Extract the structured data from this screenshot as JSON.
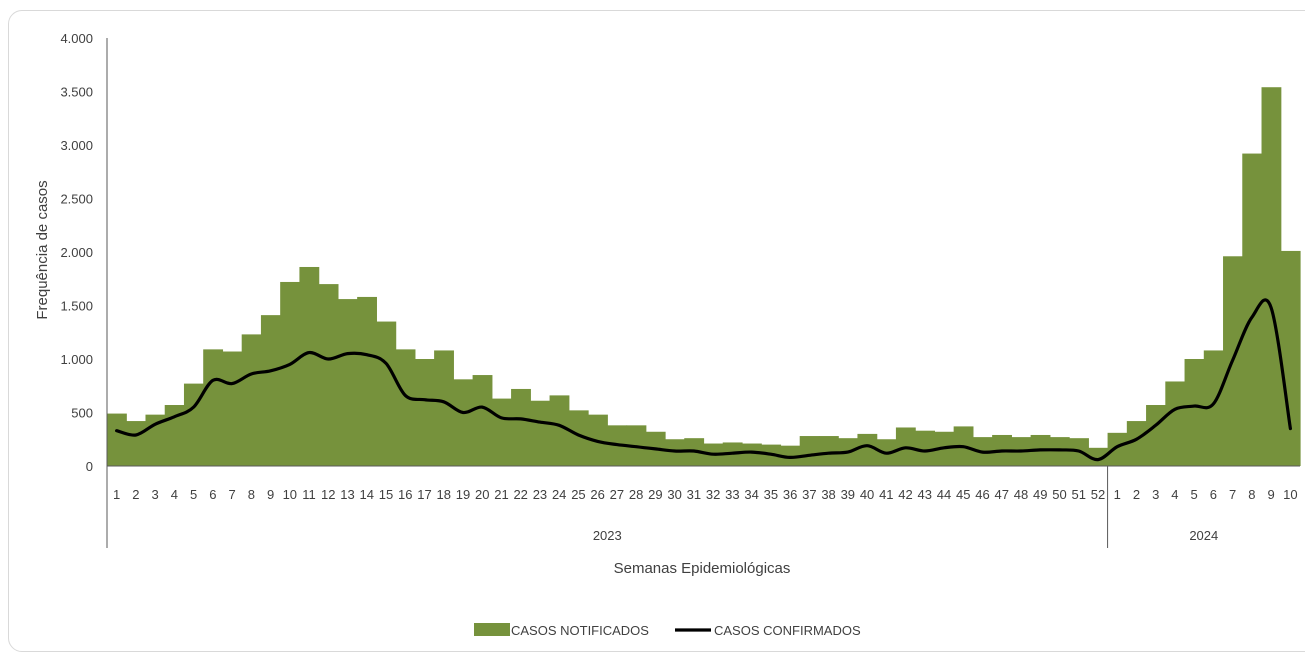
{
  "chart_data": {
    "type": "bar",
    "xlabel": "Semanas Epidemiológicas",
    "ylabel": "Frequência de casos",
    "ylim": [
      0,
      4000
    ],
    "yticks": [
      0,
      500,
      1000,
      1500,
      2000,
      2500,
      3000,
      3500,
      4000
    ],
    "ytick_labels": [
      "0",
      "500",
      "1.000",
      "1.500",
      "2.000",
      "2.500",
      "3.000",
      "3.500",
      "4.000"
    ],
    "groups": [
      {
        "label": "2023",
        "weeks": [
          "1",
          "2",
          "3",
          "4",
          "5",
          "6",
          "7",
          "8",
          "9",
          "10",
          "11",
          "12",
          "13",
          "14",
          "15",
          "16",
          "17",
          "18",
          "19",
          "20",
          "21",
          "22",
          "23",
          "24",
          "25",
          "26",
          "27",
          "28",
          "29",
          "30",
          "31",
          "32",
          "33",
          "34",
          "35",
          "36",
          "37",
          "38",
          "39",
          "40",
          "41",
          "42",
          "43",
          "44",
          "45",
          "46",
          "47",
          "48",
          "49",
          "50",
          "51",
          "52"
        ]
      },
      {
        "label": "2024",
        "weeks": [
          "1",
          "2",
          "3",
          "4",
          "5",
          "6",
          "7",
          "8",
          "9",
          "10"
        ]
      }
    ],
    "series": [
      {
        "name": "CASOS NOTIFICADOS",
        "kind": "bar",
        "color": "#76923c",
        "values": [
          490,
          420,
          480,
          570,
          770,
          1090,
          1070,
          1230,
          1410,
          1720,
          1860,
          1700,
          1560,
          1580,
          1350,
          1090,
          1000,
          1080,
          810,
          850,
          630,
          720,
          610,
          660,
          520,
          480,
          380,
          380,
          320,
          250,
          260,
          210,
          220,
          210,
          200,
          190,
          280,
          280,
          260,
          300,
          250,
          360,
          330,
          320,
          370,
          270,
          290,
          270,
          290,
          270,
          260,
          170,
          310,
          420,
          570,
          790,
          1000,
          1080,
          1960,
          2920,
          3540,
          2010
        ]
      },
      {
        "name": "CASOS CONFIRMADOS",
        "kind": "line",
        "color": "#000000",
        "values": [
          330,
          290,
          390,
          460,
          550,
          800,
          770,
          860,
          890,
          950,
          1060,
          1000,
          1050,
          1040,
          960,
          660,
          620,
          600,
          500,
          550,
          450,
          440,
          410,
          380,
          290,
          230,
          200,
          180,
          160,
          140,
          140,
          110,
          120,
          130,
          110,
          80,
          100,
          120,
          130,
          190,
          120,
          170,
          140,
          170,
          180,
          130,
          140,
          140,
          150,
          150,
          140,
          60,
          180,
          250,
          380,
          530,
          560,
          580,
          990,
          1390,
          1480,
          350
        ]
      }
    ],
    "legend": {
      "placement": "bottom-center"
    },
    "grid": false
  }
}
